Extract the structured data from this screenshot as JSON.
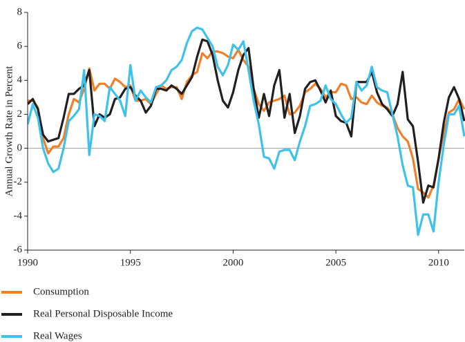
{
  "chart_data": {
    "type": "line",
    "y_label": "Annual Growth Rate in Percent",
    "x": [
      1990,
      1990.25,
      1990.5,
      1990.75,
      1991,
      1991.25,
      1991.5,
      1991.75,
      1992,
      1992.25,
      1992.5,
      1992.75,
      1993,
      1993.25,
      1993.5,
      1993.75,
      1994,
      1994.25,
      1994.5,
      1994.75,
      1995,
      1995.25,
      1995.5,
      1995.75,
      1996,
      1996.25,
      1996.5,
      1996.75,
      1997,
      1997.25,
      1997.5,
      1997.75,
      1998,
      1998.25,
      1998.5,
      1998.75,
      1999,
      1999.25,
      1999.5,
      1999.75,
      2000,
      2000.25,
      2000.5,
      2000.75,
      2001,
      2001.25,
      2001.5,
      2001.75,
      2002,
      2002.25,
      2002.5,
      2002.75,
      2003,
      2003.25,
      2003.5,
      2003.75,
      2004,
      2004.25,
      2004.5,
      2004.75,
      2005,
      2005.25,
      2005.5,
      2005.75,
      2006,
      2006.25,
      2006.5,
      2006.75,
      2007,
      2007.25,
      2007.5,
      2007.75,
      2008,
      2008.25,
      2008.5,
      2008.75,
      2009,
      2009.25,
      2009.5,
      2009.75,
      2010,
      2010.25,
      2010.5,
      2010.75,
      2011,
      2011.25
    ],
    "series": [
      {
        "name": "Consumption",
        "color": "#f07f2a",
        "values": [
          2.8,
          2.8,
          2.4,
          0.6,
          -0.3,
          0.1,
          0.1,
          0.6,
          2.0,
          2.9,
          2.7,
          3.5,
          4.7,
          3.4,
          3.8,
          3.8,
          3.5,
          4.1,
          3.9,
          3.6,
          3.7,
          2.8,
          2.8,
          2.9,
          2.6,
          3.2,
          3.7,
          3.5,
          3.6,
          3.6,
          2.9,
          3.9,
          4.3,
          4.5,
          5.6,
          5.3,
          5.7,
          5.7,
          5.6,
          5.4,
          5.3,
          5.8,
          5.2,
          4.8,
          3.5,
          2.6,
          2.2,
          2.7,
          2.8,
          2.9,
          3.1,
          2.0,
          2.1,
          2.5,
          3.3,
          3.5,
          3.8,
          3.5,
          3.0,
          3.3,
          3.3,
          3.8,
          3.7,
          2.9,
          3.0,
          2.7,
          2.6,
          3.1,
          2.7,
          2.5,
          2.4,
          2.0,
          1.2,
          0.7,
          0.4,
          -0.6,
          -2.4,
          -2.6,
          -2.9,
          -2.2,
          -0.6,
          0.9,
          2.1,
          2.3,
          2.9,
          2.3
        ]
      },
      {
        "name": "Real Personal Disposable Income",
        "color": "#231f20",
        "values": [
          2.6,
          2.9,
          2.3,
          0.8,
          0.4,
          0.5,
          0.6,
          1.8,
          3.2,
          3.2,
          3.5,
          3.7,
          4.6,
          1.3,
          2.0,
          1.8,
          2.0,
          2.9,
          3.0,
          3.5,
          3.6,
          3.1,
          2.8,
          2.1,
          2.5,
          3.5,
          3.5,
          3.4,
          3.7,
          3.5,
          3.2,
          3.7,
          4.2,
          5.4,
          6.4,
          6.3,
          5.5,
          4.0,
          2.8,
          2.4,
          3.3,
          4.6,
          5.5,
          5.9,
          3.5,
          1.8,
          3.2,
          1.9,
          3.7,
          4.6,
          1.8,
          3.2,
          0.9,
          1.9,
          3.5,
          3.9,
          4.0,
          3.4,
          2.7,
          3.4,
          1.9,
          1.6,
          1.5,
          0.7,
          3.9,
          3.9,
          3.9,
          4.5,
          3.3,
          2.6,
          2.3,
          1.9,
          2.6,
          4.5,
          1.7,
          1.3,
          -0.8,
          -3.2,
          -2.2,
          -2.3,
          -0.6,
          1.5,
          3.0,
          3.6,
          2.9,
          1.6
        ]
      },
      {
        "name": "Real Wages",
        "color": "#3ec1ea",
        "values": [
          1.4,
          2.6,
          1.8,
          0.0,
          -0.9,
          -1.4,
          -1.2,
          0.0,
          1.6,
          1.9,
          2.3,
          4.6,
          -0.4,
          2.0,
          1.9,
          1.6,
          3.6,
          3.2,
          2.8,
          1.9,
          4.9,
          2.8,
          3.4,
          3.0,
          2.7,
          3.6,
          3.7,
          4.0,
          4.6,
          4.8,
          5.2,
          6.2,
          6.9,
          7.1,
          7.0,
          6.5,
          6.0,
          4.8,
          4.3,
          4.9,
          6.1,
          5.8,
          6.3,
          4.6,
          2.8,
          1.4,
          -0.5,
          -0.6,
          -1.2,
          -0.2,
          -0.1,
          -0.1,
          -0.7,
          0.4,
          1.3,
          2.5,
          2.6,
          2.8,
          3.7,
          2.9,
          2.6,
          2.0,
          1.5,
          1.8,
          3.9,
          3.4,
          3.7,
          4.8,
          3.6,
          3.4,
          3.3,
          2.0,
          0.7,
          -1.0,
          -2.2,
          -2.3,
          -5.1,
          -3.9,
          -3.9,
          -4.9,
          -2.0,
          0.2,
          2.0,
          2.0,
          2.5,
          0.7
        ]
      }
    ],
    "xlim": [
      1990,
      2011.25
    ],
    "xticks": [
      1990,
      1995,
      2000,
      2005,
      2010
    ],
    "ylim": [
      -6,
      8
    ],
    "yticks": [
      -6,
      -4,
      -2,
      0,
      2,
      4,
      6,
      8
    ],
    "zero_line": true,
    "legend": "bottom-left"
  }
}
